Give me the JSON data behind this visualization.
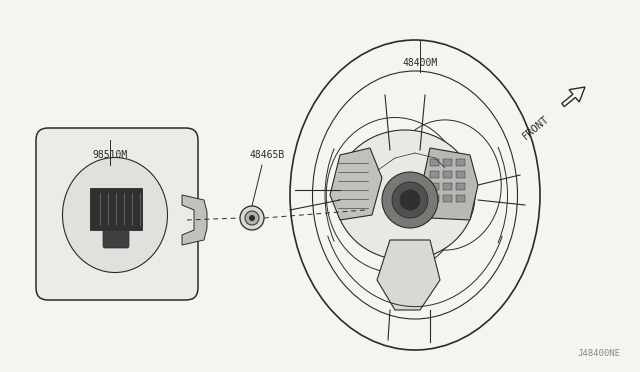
{
  "bg_color": "#f5f5f0",
  "line_color": "#2a2a2a",
  "label_color": "#2a2a2a",
  "gray_fill": "#d0d0cc",
  "mid_gray": "#a8a8a4",
  "dark_fill": "#303030",
  "labels": {
    "part1": "48400M",
    "part2": "98510M",
    "part3": "48465B",
    "diagram_id": "J48400NE"
  },
  "front_label": "FRONT"
}
